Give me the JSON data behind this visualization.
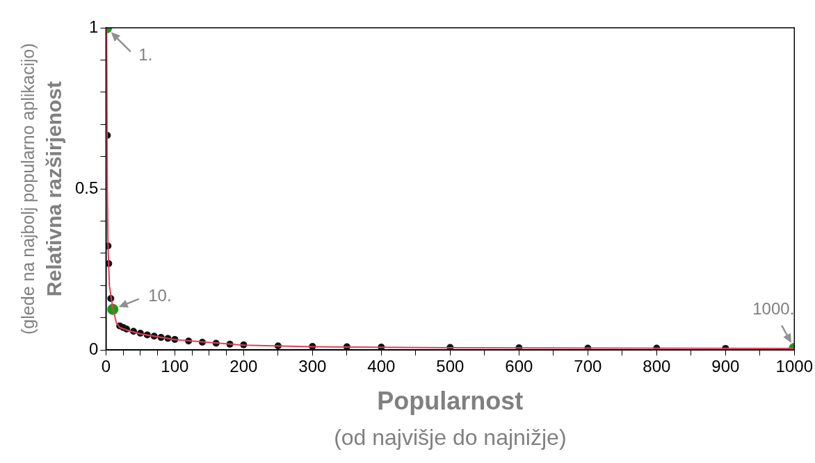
{
  "chart_data": {
    "type": "scatter",
    "xlabel": "Popularnost\n(od najvišje do najnižje)",
    "ylabel": "Relativna razširjenost\n(glede na najbolj popularno aplikacijo)",
    "xlim": [
      0,
      1000
    ],
    "ylim": [
      0,
      1
    ],
    "xticks": [
      0,
      {
        "value": 25,
        "label": null
      },
      {
        "value": 50,
        "label": null
      },
      {
        "value": 75,
        "label": null
      },
      100,
      {
        "value": 125,
        "label": null
      },
      {
        "value": 150,
        "label": null
      },
      {
        "value": 175,
        "label": null
      },
      200,
      {
        "value": 250,
        "label": null
      },
      300,
      {
        "value": 350,
        "label": null
      },
      400,
      {
        "value": 450,
        "label": null
      },
      500,
      {
        "value": 550,
        "label": null
      },
      600,
      {
        "value": 650,
        "label": null
      },
      700,
      {
        "value": 750,
        "label": null
      },
      800,
      {
        "value": 850,
        "label": null
      },
      900,
      {
        "value": 950,
        "label": null
      },
      1000
    ],
    "yticks": [
      0,
      {
        "value": 0.1,
        "label": null
      },
      {
        "value": 0.2,
        "label": null
      },
      {
        "value": 0.3,
        "label": null
      },
      {
        "value": 0.4,
        "label": null
      },
      0.5,
      {
        "value": 0.6,
        "label": null
      },
      {
        "value": 0.7,
        "label": null
      },
      {
        "value": 0.8,
        "label": null
      },
      {
        "value": 0.9,
        "label": null
      },
      1
    ],
    "grid": false,
    "legend": false,
    "series": [
      {
        "marker": "circle",
        "color": "#111111",
        "x": [
          2,
          3,
          4,
          7,
          20,
          25,
          30,
          40,
          50,
          60,
          70,
          80,
          90,
          100,
          120,
          140,
          160,
          180,
          200,
          250,
          300,
          350,
          400,
          500,
          600,
          700,
          800,
          900
        ],
        "values": [
          0.666,
          0.323,
          0.268,
          0.16,
          0.075,
          0.07,
          0.065,
          0.058,
          0.052,
          0.047,
          0.043,
          0.039,
          0.036,
          0.033,
          0.028,
          0.024,
          0.021,
          0.018,
          0.016,
          0.013,
          0.011,
          0.01,
          0.009,
          0.008,
          0.007,
          0.006,
          0.006,
          0.005
        ]
      },
      {
        "type": "line",
        "color": "#e0405a",
        "x": [
          1,
          2,
          3,
          5,
          10,
          15,
          20,
          30,
          50,
          100,
          200,
          300,
          500,
          1000
        ],
        "values": [
          1,
          0.5,
          0.33,
          0.2,
          0.13,
          0.085,
          0.07,
          0.062,
          0.05,
          0.032,
          0.015,
          0.01,
          0.007,
          0.005
        ]
      },
      {
        "marker": "circle",
        "color": "#1a9a1a",
        "x": [
          1,
          10,
          1000
        ],
        "values": [
          1,
          0.126,
          0.005
        ]
      }
    ],
    "annotations": [
      {
        "text": "1.",
        "x": 1,
        "y": 1
      },
      {
        "text": "10.",
        "x": 10,
        "y": 0.126
      },
      {
        "text": "1000.",
        "x": 1000,
        "y": 0.005
      }
    ]
  }
}
